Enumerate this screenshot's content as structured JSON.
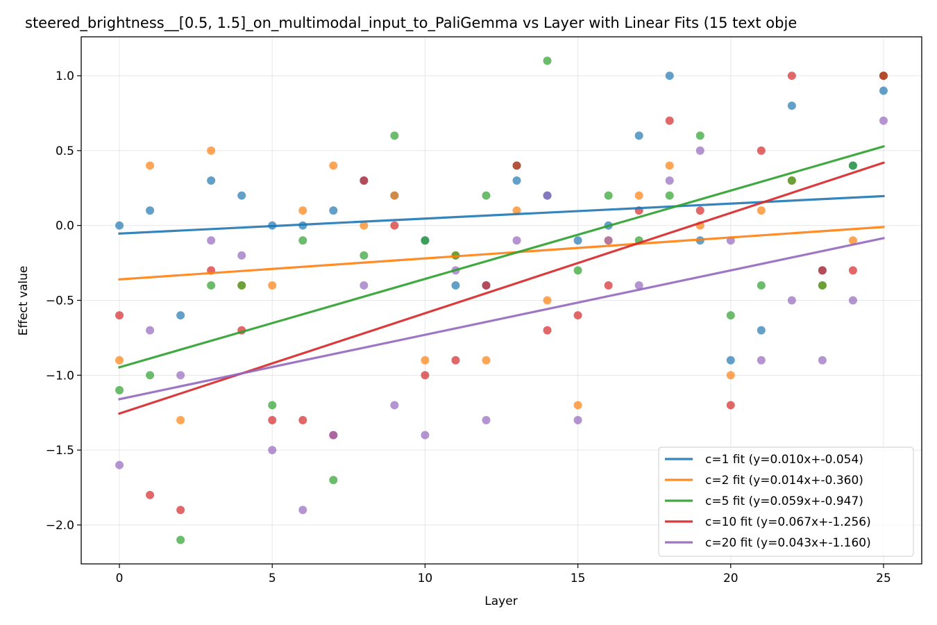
{
  "chart_data": {
    "type": "scatter",
    "title": "steered_brightness__[0.5, 1.5]_on_multimodal_input_to_PaliGemma vs Layer with Linear Fits (15 text obje",
    "xlabel": "Layer",
    "ylabel": "Effect value",
    "xlim": [
      -1.25,
      26.25
    ],
    "ylim": [
      -2.26,
      1.26
    ],
    "xticks": [
      0,
      5,
      10,
      15,
      20,
      25
    ],
    "yticks": [
      1.0,
      0.5,
      0.0,
      -0.5,
      -1.0,
      -1.5,
      -2.0
    ],
    "ytick_labels": [
      "1.0",
      "0.5",
      "0.0",
      "−0.5",
      "−1.0",
      "−1.5",
      "−2.0"
    ],
    "grid": true,
    "legend_position": "lower-right",
    "series": [
      {
        "name": "c=1 fit (y=0.010x+-0.054)",
        "color": "#1f77b4",
        "slope": 0.01,
        "intercept": -0.054,
        "points": [
          [
            0,
            0.0
          ],
          [
            1,
            0.1
          ],
          [
            2,
            -0.6
          ],
          [
            3,
            0.3
          ],
          [
            4,
            0.2
          ],
          [
            5,
            0.0
          ],
          [
            6,
            0.0
          ],
          [
            7,
            0.1
          ],
          [
            8,
            0.3
          ],
          [
            9,
            0.2
          ],
          [
            10,
            -0.1
          ],
          [
            11,
            -0.4
          ],
          [
            12,
            -0.4
          ],
          [
            13,
            0.3
          ],
          [
            14,
            0.2
          ],
          [
            15,
            -0.1
          ],
          [
            16,
            0.0
          ],
          [
            17,
            0.6
          ],
          [
            18,
            1.0
          ],
          [
            19,
            -0.1
          ],
          [
            20,
            -0.9
          ],
          [
            21,
            -0.7
          ],
          [
            22,
            0.8
          ],
          [
            23,
            -0.3
          ],
          [
            24,
            0.4
          ],
          [
            25,
            0.9
          ]
        ]
      },
      {
        "name": "c=2 fit (y=0.014x+-0.360)",
        "color": "#ff7f0e",
        "slope": 0.014,
        "intercept": -0.36,
        "points": [
          [
            0,
            -0.9
          ],
          [
            1,
            0.4
          ],
          [
            2,
            -1.3
          ],
          [
            3,
            0.5
          ],
          [
            4,
            -0.4
          ],
          [
            5,
            -0.4
          ],
          [
            6,
            0.1
          ],
          [
            7,
            0.4
          ],
          [
            8,
            0.0
          ],
          [
            9,
            0.2
          ],
          [
            10,
            -0.9
          ],
          [
            11,
            -0.2
          ],
          [
            12,
            -0.9
          ],
          [
            13,
            0.1
          ],
          [
            14,
            -0.5
          ],
          [
            15,
            -1.2
          ],
          [
            16,
            -0.1
          ],
          [
            17,
            0.2
          ],
          [
            18,
            0.4
          ],
          [
            19,
            0.0
          ],
          [
            20,
            -1.0
          ],
          [
            21,
            0.1
          ],
          [
            22,
            0.3
          ],
          [
            23,
            -0.4
          ],
          [
            24,
            -0.1
          ],
          [
            25,
            1.0
          ]
        ]
      },
      {
        "name": "c=5 fit (y=0.059x+-0.947)",
        "color": "#2ca02c",
        "slope": 0.059,
        "intercept": -0.947,
        "points": [
          [
            0,
            -1.1
          ],
          [
            1,
            -1.0
          ],
          [
            2,
            -2.1
          ],
          [
            3,
            -0.4
          ],
          [
            4,
            -0.4
          ],
          [
            5,
            -1.2
          ],
          [
            6,
            -0.1
          ],
          [
            7,
            -1.7
          ],
          [
            8,
            -0.2
          ],
          [
            9,
            0.6
          ],
          [
            10,
            -0.1
          ],
          [
            11,
            -0.2
          ],
          [
            12,
            0.2
          ],
          [
            13,
            0.4
          ],
          [
            14,
            1.1
          ],
          [
            15,
            -0.3
          ],
          [
            16,
            0.2
          ],
          [
            17,
            -0.1
          ],
          [
            18,
            0.2
          ],
          [
            19,
            0.6
          ],
          [
            20,
            -0.6
          ],
          [
            21,
            -0.4
          ],
          [
            22,
            0.3
          ],
          [
            23,
            -0.4
          ],
          [
            24,
            0.4
          ],
          [
            25,
            1.0
          ]
        ]
      },
      {
        "name": "c=10 fit (y=0.067x+-1.256)",
        "color": "#d62728",
        "slope": 0.067,
        "intercept": -1.256,
        "points": [
          [
            0,
            -0.6
          ],
          [
            1,
            -1.8
          ],
          [
            2,
            -1.9
          ],
          [
            3,
            -0.3
          ],
          [
            4,
            -0.7
          ],
          [
            5,
            -1.3
          ],
          [
            6,
            -1.3
          ],
          [
            7,
            -1.4
          ],
          [
            8,
            0.3
          ],
          [
            9,
            0.0
          ],
          [
            10,
            -1.0
          ],
          [
            11,
            -0.9
          ],
          [
            12,
            -0.4
          ],
          [
            13,
            0.4
          ],
          [
            14,
            -0.7
          ],
          [
            15,
            -0.6
          ],
          [
            16,
            -0.4
          ],
          [
            17,
            0.1
          ],
          [
            18,
            0.7
          ],
          [
            19,
            0.1
          ],
          [
            20,
            -1.2
          ],
          [
            21,
            0.5
          ],
          [
            22,
            1.0
          ],
          [
            23,
            -0.3
          ],
          [
            24,
            -0.3
          ],
          [
            25,
            1.0
          ]
        ]
      },
      {
        "name": "c=20 fit (y=0.043x+-1.160)",
        "color": "#9467bd",
        "slope": 0.043,
        "intercept": -1.16,
        "points": [
          [
            0,
            -1.6
          ],
          [
            1,
            -0.7
          ],
          [
            2,
            -1.0
          ],
          [
            3,
            -0.1
          ],
          [
            4,
            -0.2
          ],
          [
            5,
            -1.5
          ],
          [
            6,
            -1.9
          ],
          [
            7,
            -1.4
          ],
          [
            8,
            -0.4
          ],
          [
            9,
            -1.2
          ],
          [
            10,
            -1.4
          ],
          [
            11,
            -0.3
          ],
          [
            12,
            -1.3
          ],
          [
            13,
            -0.1
          ],
          [
            14,
            0.2
          ],
          [
            15,
            -1.3
          ],
          [
            16,
            -0.1
          ],
          [
            17,
            -0.4
          ],
          [
            18,
            0.3
          ],
          [
            19,
            0.5
          ],
          [
            20,
            -0.1
          ],
          [
            21,
            -0.9
          ],
          [
            22,
            -0.5
          ],
          [
            23,
            -0.9
          ],
          [
            24,
            -0.5
          ],
          [
            25,
            0.7
          ]
        ]
      }
    ]
  }
}
